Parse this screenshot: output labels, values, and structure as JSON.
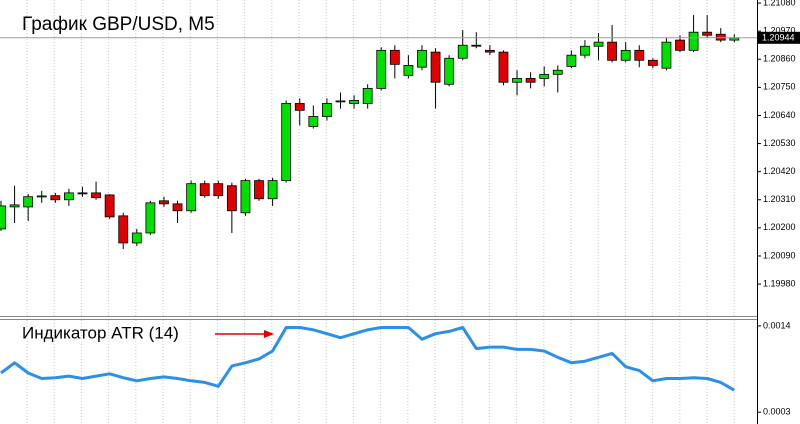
{
  "chart_data": [
    {
      "type": "candlestick",
      "title": "График GBP/USD, M5",
      "open": [
        1.20196,
        1.20282,
        1.20282,
        1.20322,
        1.20326,
        1.2031,
        1.20337,
        1.20337,
        1.20329,
        1.20247,
        1.20141,
        1.2018,
        1.20306,
        1.20294,
        1.20267,
        1.20373,
        1.20373,
        1.20365,
        1.20259,
        1.20385,
        1.20314,
        1.20385,
        1.20687,
        1.20597,
        1.20636,
        1.20695,
        1.20687,
        1.20687,
        1.20746,
        1.20895,
        1.20797,
        1.20829,
        1.20888,
        1.20762,
        1.20864,
        1.20915,
        1.20895,
        1.20888,
        1.2077,
        1.20785,
        1.20785,
        1.20801,
        1.20832,
        1.20876,
        1.20911,
        1.20927,
        1.20856,
        1.20895,
        1.20856,
        1.20825,
        1.20935,
        1.20895,
        1.20966,
        1.20958,
        1.20935
      ],
      "high": [
        1.20306,
        1.20365,
        1.20333,
        1.20345,
        1.20337,
        1.20353,
        1.20361,
        1.20381,
        1.20332,
        1.20259,
        1.20196,
        1.20306,
        1.20322,
        1.20306,
        1.20385,
        1.20385,
        1.20385,
        1.20377,
        1.20392,
        1.20392,
        1.20396,
        1.20699,
        1.20707,
        1.20679,
        1.20707,
        1.2073,
        1.20719,
        1.20762,
        1.20907,
        1.20915,
        1.20876,
        1.20915,
        1.20903,
        1.20876,
        1.20974,
        1.20966,
        1.20915,
        1.20895,
        1.20817,
        1.20809,
        1.20832,
        1.20836,
        1.20895,
        1.20935,
        1.20962,
        1.20994,
        1.20927,
        1.20915,
        1.20864,
        1.20943,
        1.20954,
        1.21033,
        1.21033,
        1.20982,
        1.20958
      ],
      "low": [
        1.20188,
        1.20219,
        1.20227,
        1.20298,
        1.20298,
        1.20286,
        1.20322,
        1.2031,
        1.20235,
        1.20117,
        1.20129,
        1.20172,
        1.20282,
        1.20219,
        1.20259,
        1.20318,
        1.20314,
        1.2018,
        1.20247,
        1.20306,
        1.20286,
        1.20377,
        1.20601,
        1.20589,
        1.2062,
        1.20667,
        1.20667,
        1.20667,
        1.20738,
        1.20785,
        1.20785,
        1.20817,
        1.20667,
        1.20754,
        1.20856,
        1.20903,
        1.20876,
        1.20758,
        1.20719,
        1.20746,
        1.20754,
        1.2073,
        1.20825,
        1.20864,
        1.20856,
        1.20848,
        1.20848,
        1.20829,
        1.20825,
        1.20817,
        1.20888,
        1.20888,
        1.20943,
        1.20927,
        1.20927
      ],
      "close": [
        1.20286,
        1.2029,
        1.20322,
        1.20325,
        1.2031,
        1.20337,
        1.20335,
        1.20318,
        1.20243,
        1.20141,
        1.2018,
        1.20298,
        1.20294,
        1.20267,
        1.20373,
        1.20326,
        1.20326,
        1.20267,
        1.20385,
        1.20314,
        1.20385,
        1.20687,
        1.2066,
        1.20636,
        1.20687,
        1.20697,
        1.20699,
        1.20746,
        1.20895,
        1.2084,
        1.20836,
        1.20895,
        1.2077,
        1.20864,
        1.20915,
        1.20913,
        1.20888,
        1.2077,
        1.20785,
        1.2077,
        1.20801,
        1.20817,
        1.20876,
        1.20911,
        1.20927,
        1.20856,
        1.20895,
        1.20856,
        1.20836,
        1.20927,
        1.20895,
        1.20966,
        1.20954,
        1.20935,
        1.20944
      ],
      "up_color": "#00e000",
      "down_color": "#e00000",
      "last_price": 1.20944,
      "ylim": [
        1.19855,
        1.21092
      ],
      "yticks": [
        {
          "value": 1.2108,
          "label": "1.21080"
        },
        {
          "value": 1.2097,
          "label": "1.20970"
        },
        {
          "value": 1.2086,
          "label": "1.20860"
        },
        {
          "value": 1.2075,
          "label": "1.20750"
        },
        {
          "value": 1.2064,
          "label": "1.20640"
        },
        {
          "value": 1.2053,
          "label": "1.20530"
        },
        {
          "value": 1.2042,
          "label": "1.20420"
        },
        {
          "value": 1.2031,
          "label": "1.20310"
        },
        {
          "value": 1.202,
          "label": "1.20200"
        },
        {
          "value": 1.2009,
          "label": "1.20090"
        },
        {
          "value": 1.1998,
          "label": "1.19980"
        }
      ]
    },
    {
      "type": "line",
      "title": "Индикатор ATR (14)",
      "color": "#2c8fe8",
      "values": [
        0.0008,
        0.00093,
        0.0008,
        0.00073,
        0.00074,
        0.00076,
        0.00073,
        0.00076,
        0.00079,
        0.00074,
        0.0007,
        0.00073,
        0.00075,
        0.00073,
        0.0007,
        0.00068,
        0.00063,
        0.00089,
        0.00093,
        0.00098,
        0.00108,
        0.00138,
        0.00138,
        0.00135,
        0.0013,
        0.00125,
        0.0013,
        0.00135,
        0.00138,
        0.00138,
        0.00138,
        0.00123,
        0.0013,
        0.00133,
        0.00138,
        0.00111,
        0.00113,
        0.00113,
        0.0011,
        0.0011,
        0.00108,
        0.001,
        0.00093,
        0.00095,
        0.001,
        0.00105,
        0.00088,
        0.00083,
        0.0007,
        0.00073,
        0.00073,
        0.00074,
        0.00073,
        0.00068,
        0.00058
      ],
      "ylim": [
        0.00015,
        0.001475
      ],
      "yticks": [
        0.0014,
        0.0003
      ]
    }
  ]
}
